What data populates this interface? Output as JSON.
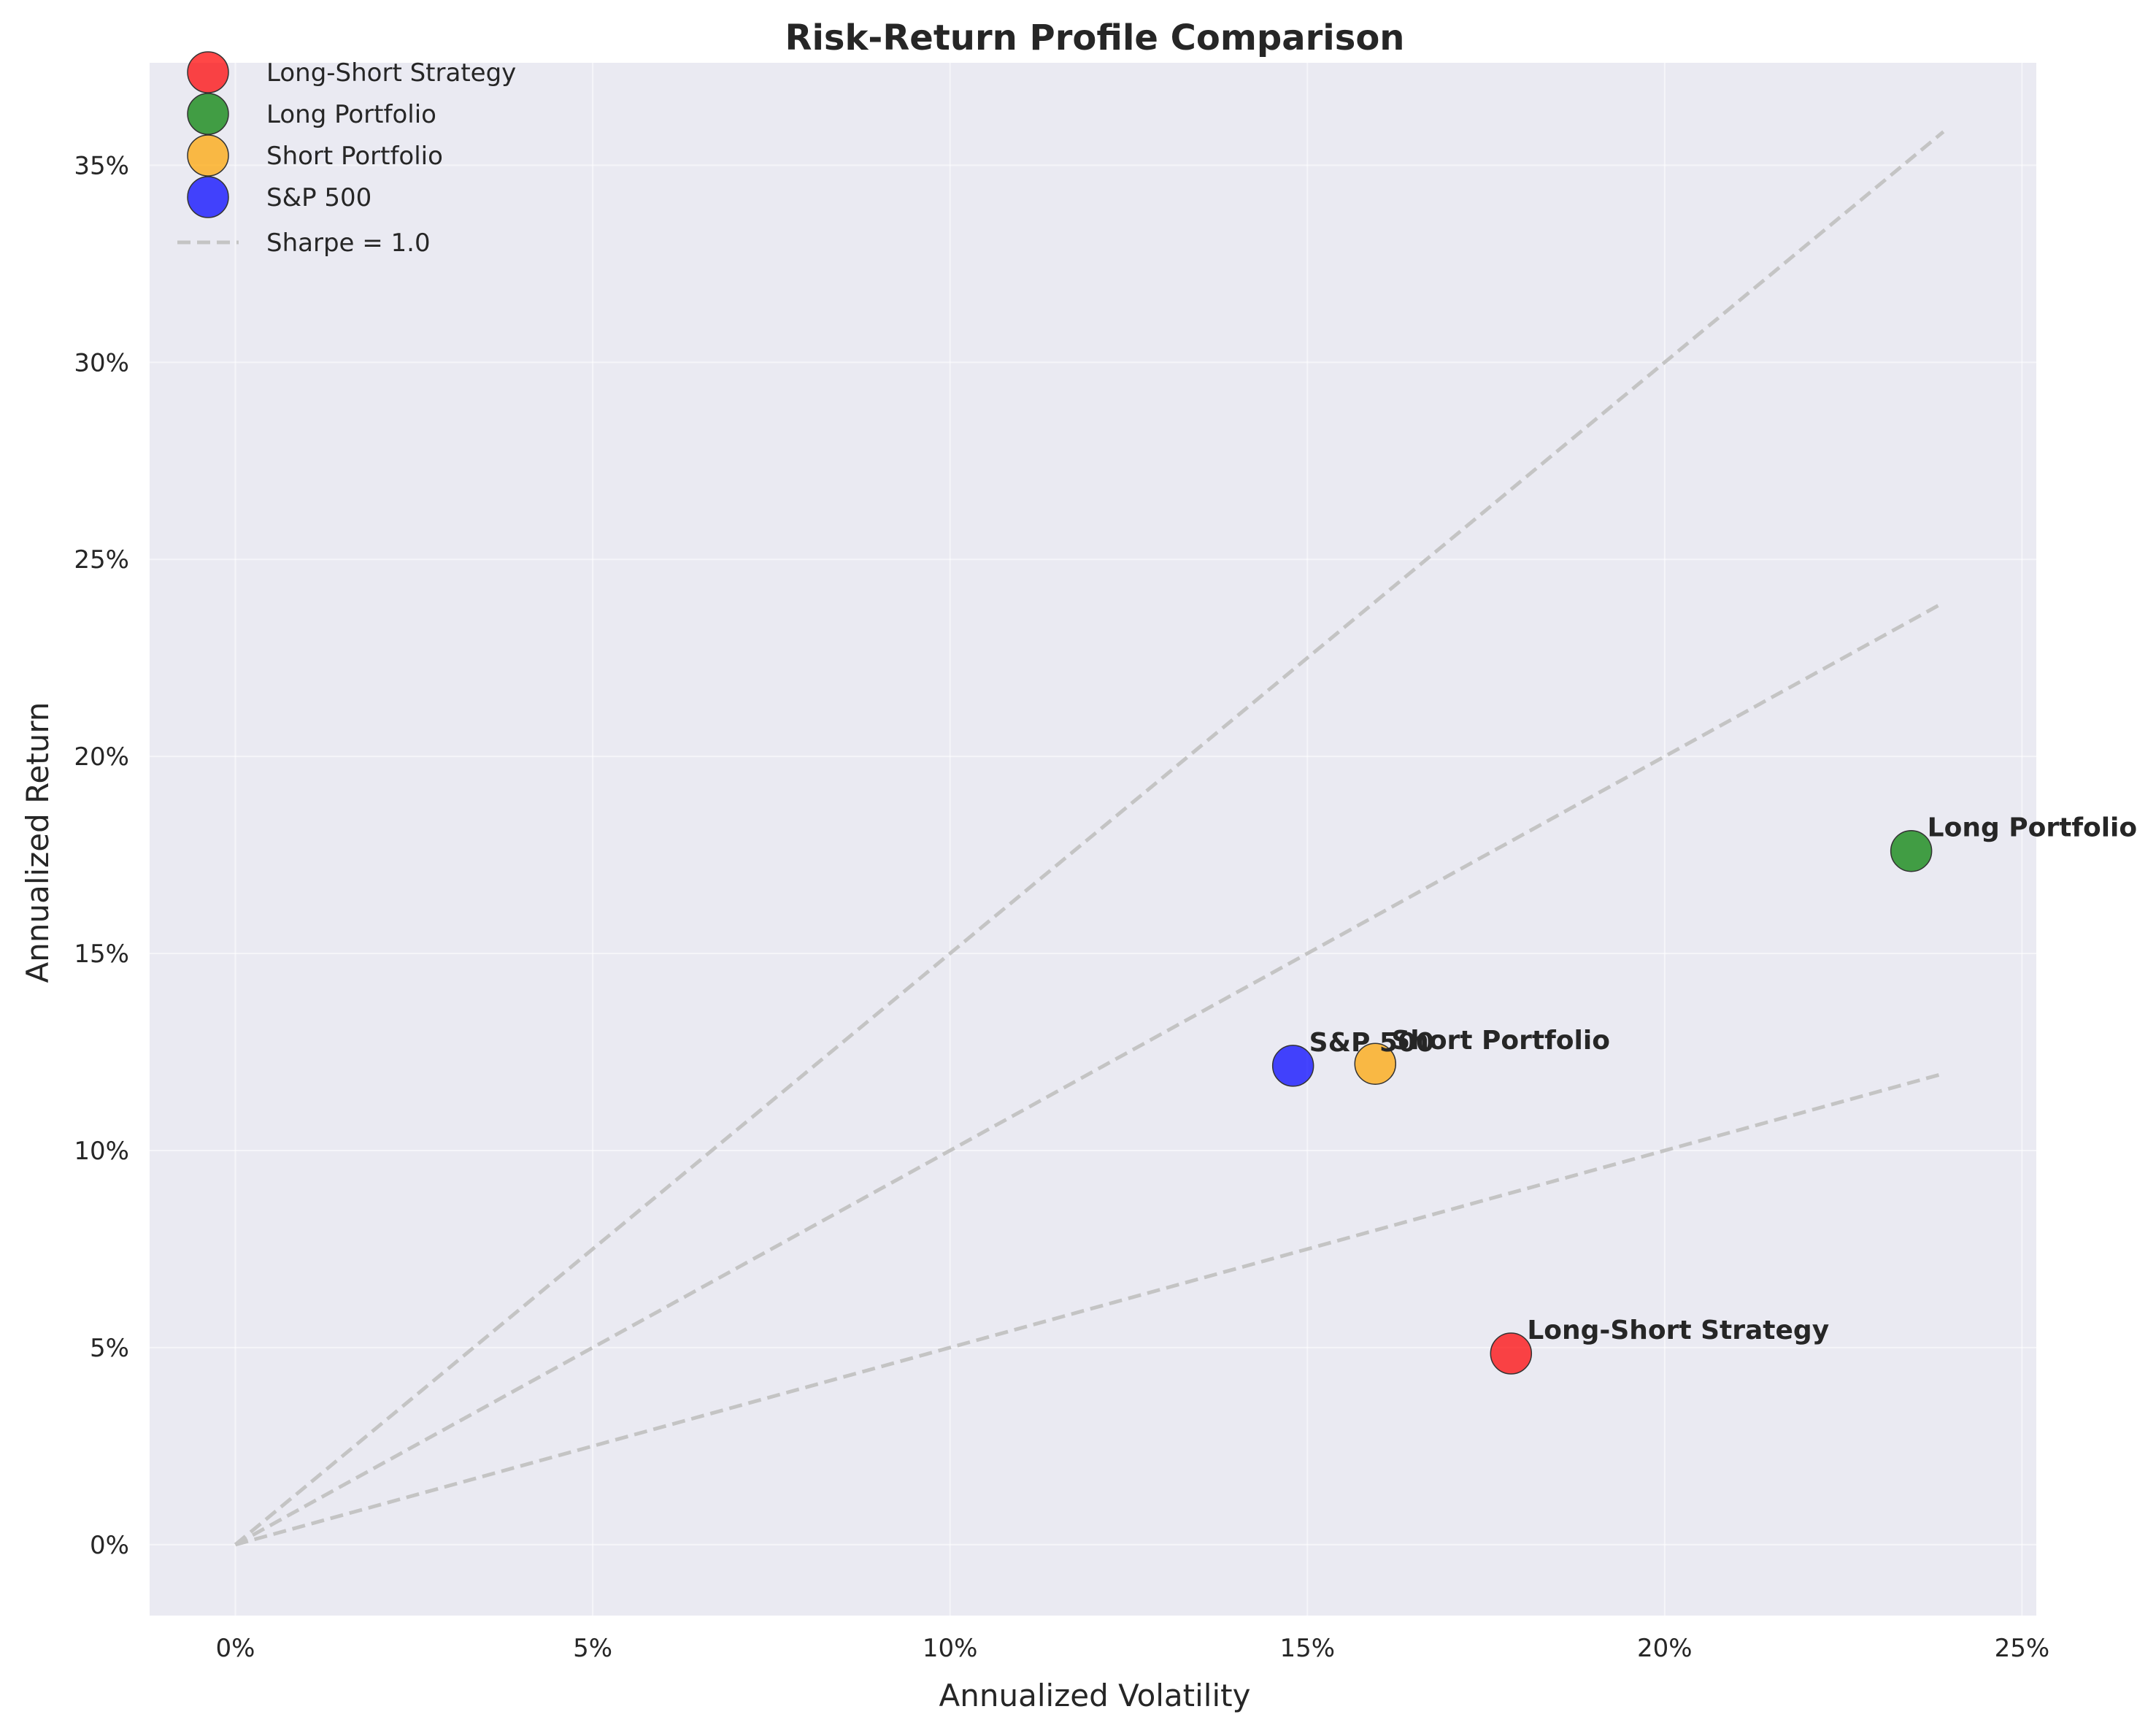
{
  "chart_data": {
    "type": "scatter",
    "title": "Risk-Return Profile Comparison",
    "xlabel": "Annualized Volatility",
    "ylabel": "Annualized Return",
    "xlim": [
      -1.2,
      25.2
    ],
    "ylim": [
      -1.8,
      37.6
    ],
    "xticks": [
      0,
      5,
      10,
      15,
      20,
      25
    ],
    "yticks": [
      0,
      5,
      10,
      15,
      20,
      25,
      30,
      35
    ],
    "x_tick_labels": [
      "0%",
      "5%",
      "10%",
      "15%",
      "20%",
      "25%"
    ],
    "y_tick_labels": [
      "0%",
      "5%",
      "10%",
      "15%",
      "20%",
      "25%",
      "30%",
      "35%"
    ],
    "grid": true,
    "background_color": "#eaeaf2",
    "legend_position": "top-left",
    "series": [
      {
        "name": "Long-Short Strategy",
        "color": "#ff0000",
        "points": [
          {
            "x": 17.85,
            "y": 4.85
          }
        ],
        "annotation": "Long-Short Strategy"
      },
      {
        "name": "Long Portfolio",
        "color": "#008000",
        "points": [
          {
            "x": 23.45,
            "y": 17.6
          }
        ],
        "annotation": "Long Portfolio"
      },
      {
        "name": "Short Portfolio",
        "color": "#ffa500",
        "points": [
          {
            "x": 15.95,
            "y": 12.2
          }
        ],
        "annotation": "Short Portfolio"
      },
      {
        "name": "S&P 500",
        "color": "#0000ff",
        "points": [
          {
            "x": 14.8,
            "y": 12.15
          }
        ],
        "annotation": "S&P 500"
      }
    ],
    "reference_lines": [
      {
        "name": "Sharpe = 1.0",
        "slope": 1.5,
        "x_range": [
          0,
          23.9
        ]
      },
      {
        "slope": 1.0,
        "x_range": [
          0,
          23.9
        ]
      },
      {
        "slope": 0.5,
        "x_range": [
          0,
          23.9
        ]
      }
    ],
    "reference_line_color": "#c4c4c4"
  }
}
